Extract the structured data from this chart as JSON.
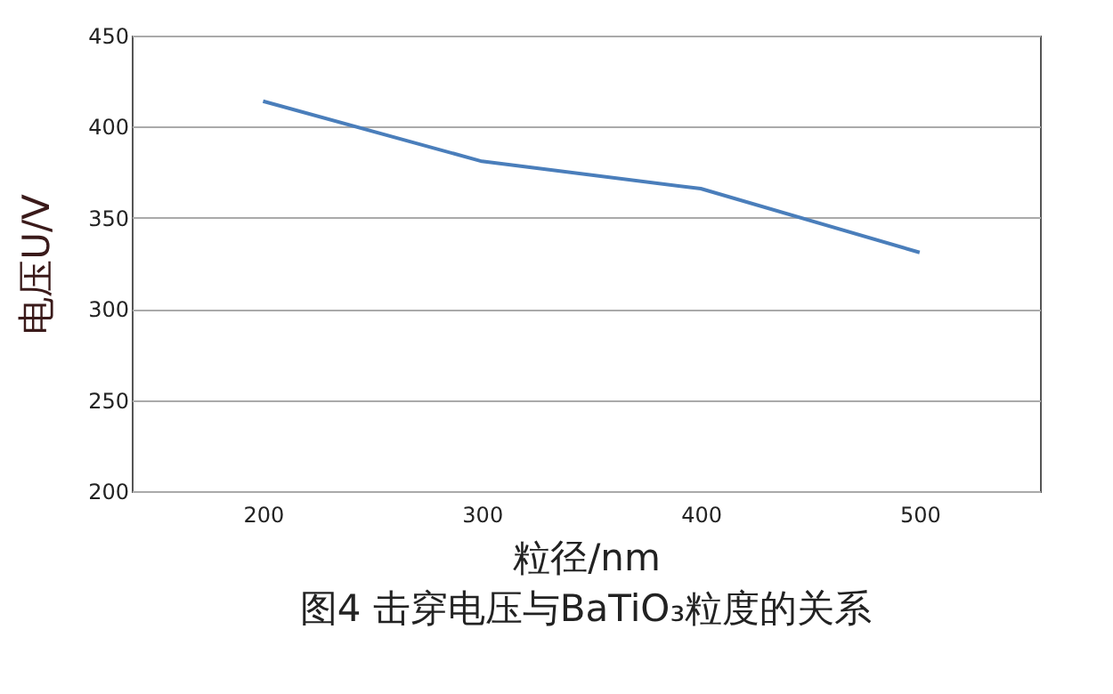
{
  "chart_data": {
    "type": "line",
    "title": "图4  击穿电压与BaTiO₃粒度的关系",
    "xlabel": "粒径/nm",
    "ylabel": "电压U/V",
    "categories": [
      "200",
      "300",
      "400",
      "500"
    ],
    "series": [
      {
        "color": "#4a7ebb",
        "values": [
          414,
          381,
          366,
          331
        ]
      }
    ],
    "ylim": [
      200,
      450
    ],
    "yticks": [
      200,
      250,
      300,
      350,
      400,
      450
    ],
    "grid": "y",
    "legend": false,
    "marker": "none",
    "line_style": "solid"
  }
}
